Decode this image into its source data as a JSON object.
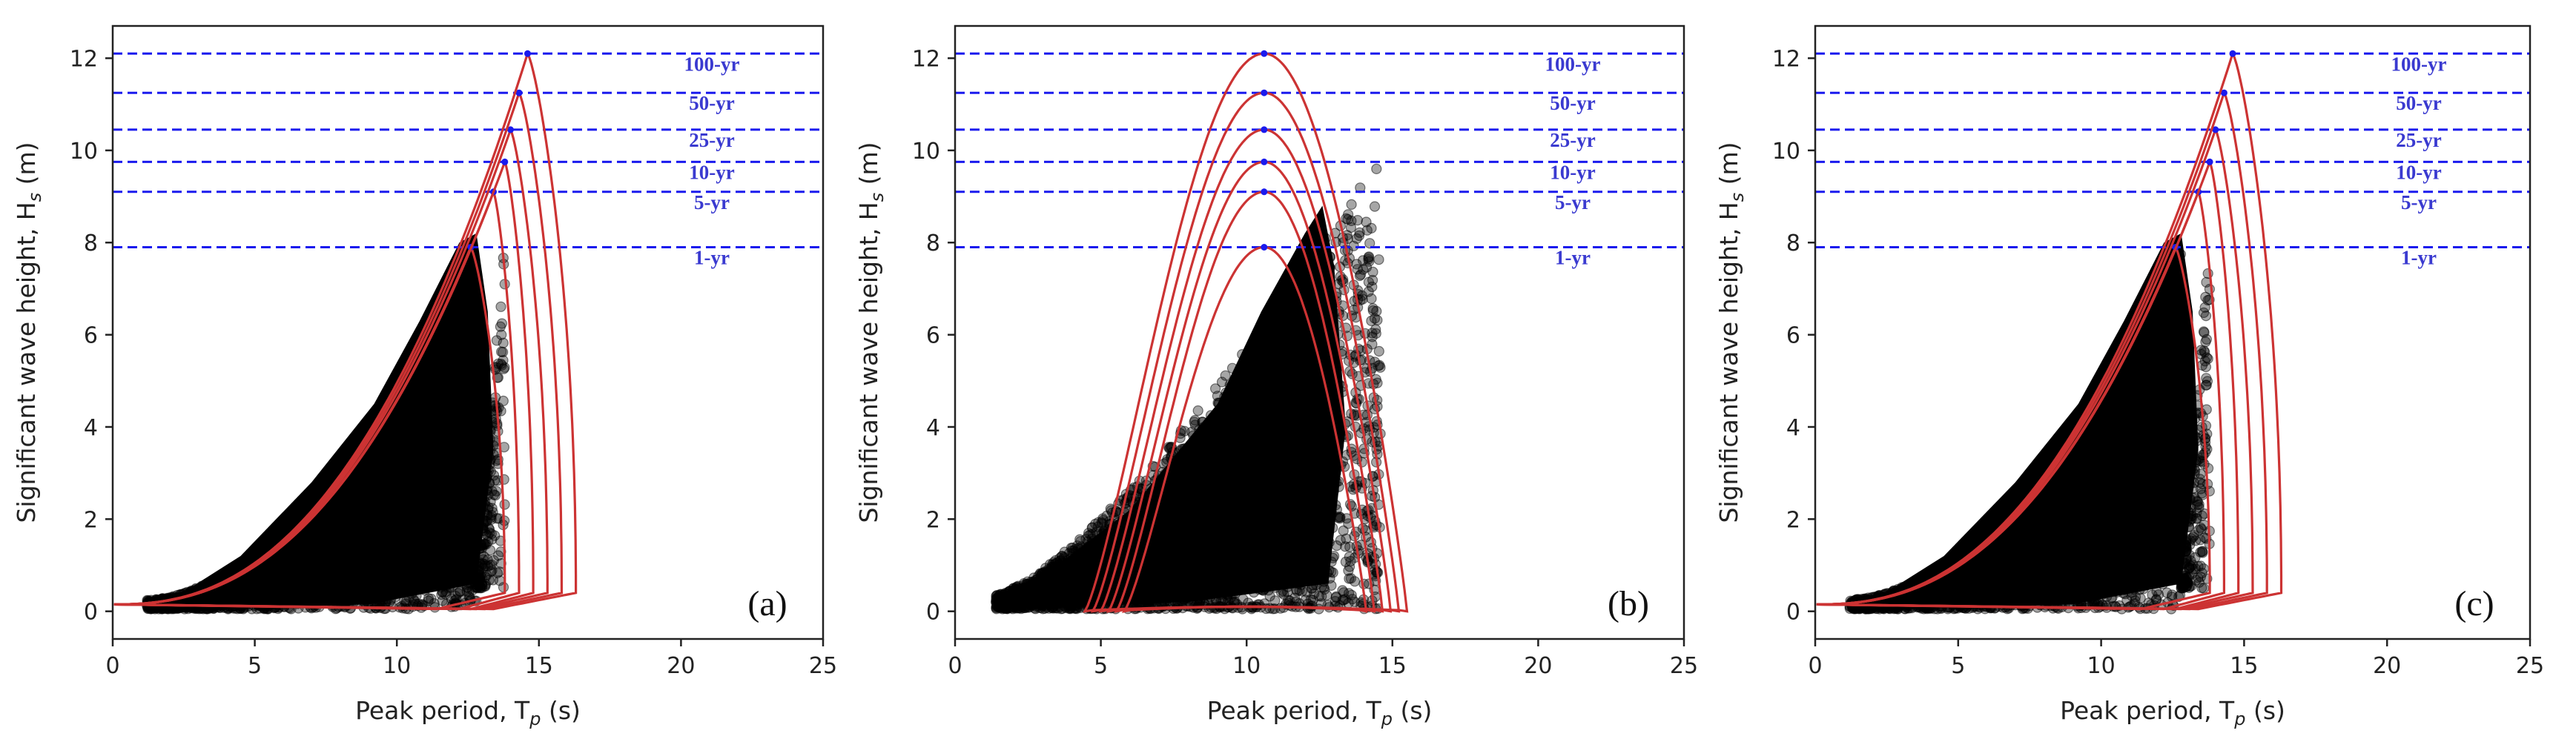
{
  "chart_data": [
    {
      "type": "scatter",
      "panel_label": "(a)",
      "xlabel": "Peak period, T",
      "xlabel_sub": "p",
      "xlabel_unit": " (s)",
      "ylabel": "Significant wave height, H",
      "ylabel_sub": "s",
      "ylabel_unit": " (m)",
      "xlim": [
        0,
        25
      ],
      "ylim": [
        -0.6,
        12.7
      ],
      "xticks": [
        "0",
        "5",
        "10",
        "15",
        "20",
        "25"
      ],
      "yticks": [
        "0",
        "2",
        "4",
        "6",
        "8",
        "10",
        "12"
      ],
      "return_periods": [
        {
          "label": "1-yr",
          "hs": 7.9
        },
        {
          "label": "5-yr",
          "hs": 9.1
        },
        {
          "label": "10-yr",
          "hs": 9.75
        },
        {
          "label": "25-yr",
          "hs": 10.45
        },
        {
          "label": "50-yr",
          "hs": 11.25
        },
        {
          "label": "100-yr",
          "hs": 12.1
        }
      ],
      "contour_peaks_tp": [
        12.6,
        13.4,
        13.8,
        14.0,
        14.3,
        14.6
      ],
      "contour_shape": "skewed",
      "scatter_style": "skewed"
    },
    {
      "type": "scatter",
      "panel_label": "(b)",
      "xlabel": "Peak period, T",
      "xlabel_sub": "p",
      "xlabel_unit": " (s)",
      "ylabel": "Significant wave height, H",
      "ylabel_sub": "s",
      "ylabel_unit": " (m)",
      "xlim": [
        0,
        25
      ],
      "ylim": [
        -0.6,
        12.7
      ],
      "xticks": [
        "0",
        "5",
        "10",
        "15",
        "20",
        "25"
      ],
      "yticks": [
        "0",
        "2",
        "4",
        "6",
        "8",
        "10",
        "12"
      ],
      "return_periods": [
        {
          "label": "1-yr",
          "hs": 7.9
        },
        {
          "label": "5-yr",
          "hs": 9.1
        },
        {
          "label": "10-yr",
          "hs": 9.75
        },
        {
          "label": "25-yr",
          "hs": 10.45
        },
        {
          "label": "50-yr",
          "hs": 11.25
        },
        {
          "label": "100-yr",
          "hs": 12.1
        }
      ],
      "contour_peaks_tp": [
        10.6,
        10.6,
        10.6,
        10.6,
        10.6,
        10.6
      ],
      "contour_shape": "arch",
      "scatter_style": "wide"
    },
    {
      "type": "scatter",
      "panel_label": "(c)",
      "xlabel": "Peak period, T",
      "xlabel_sub": "p",
      "xlabel_unit": " (s)",
      "ylabel": "Significant wave height, H",
      "ylabel_sub": "s",
      "ylabel_unit": " (m)",
      "xlim": [
        0,
        25
      ],
      "ylim": [
        -0.6,
        12.7
      ],
      "xticks": [
        "0",
        "5",
        "10",
        "15",
        "20",
        "25"
      ],
      "yticks": [
        "0",
        "2",
        "4",
        "6",
        "8",
        "10",
        "12"
      ],
      "return_periods": [
        {
          "label": "1-yr",
          "hs": 7.9
        },
        {
          "label": "5-yr",
          "hs": 9.1
        },
        {
          "label": "10-yr",
          "hs": 9.75
        },
        {
          "label": "25-yr",
          "hs": 10.45
        },
        {
          "label": "50-yr",
          "hs": 11.25
        },
        {
          "label": "100-yr",
          "hs": 12.1
        }
      ],
      "contour_peaks_tp": [
        12.6,
        13.4,
        13.8,
        14.0,
        14.3,
        14.6
      ],
      "contour_shape": "skewed",
      "scatter_style": "skewed"
    }
  ],
  "colors": {
    "contour": "#cc3333",
    "return_line": "#1a1aee",
    "return_label": "#3a3ad0",
    "scatter": "#000000",
    "axis": "#222222"
  }
}
